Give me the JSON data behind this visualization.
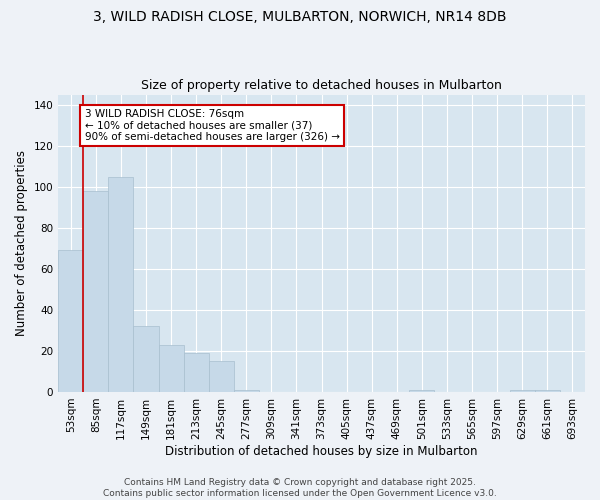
{
  "title_line1": "3, WILD RADISH CLOSE, MULBARTON, NORWICH, NR14 8DB",
  "title_line2": "Size of property relative to detached houses in Mulbarton",
  "xlabel": "Distribution of detached houses by size in Mulbarton",
  "ylabel": "Number of detached properties",
  "categories": [
    "53sqm",
    "85sqm",
    "117sqm",
    "149sqm",
    "181sqm",
    "213sqm",
    "245sqm",
    "277sqm",
    "309sqm",
    "341sqm",
    "373sqm",
    "405sqm",
    "437sqm",
    "469sqm",
    "501sqm",
    "533sqm",
    "565sqm",
    "597sqm",
    "629sqm",
    "661sqm",
    "693sqm"
  ],
  "values": [
    69,
    98,
    105,
    32,
    23,
    19,
    15,
    1,
    0,
    0,
    0,
    0,
    0,
    0,
    1,
    0,
    0,
    0,
    1,
    1,
    0
  ],
  "bar_color": "#c6d9e8",
  "bar_edge_color": "#a8bfcf",
  "ylim": [
    0,
    145
  ],
  "yticks": [
    0,
    20,
    40,
    60,
    80,
    100,
    120,
    140
  ],
  "red_line_x": 0.5,
  "annotation_title": "3 WILD RADISH CLOSE: 76sqm",
  "annotation_line1": "← 10% of detached houses are smaller (37)",
  "annotation_line2": "90% of semi-detached houses are larger (326) →",
  "annotation_box_color": "#ffffff",
  "annotation_box_edge": "#cc0000",
  "footer_line1": "Contains HM Land Registry data © Crown copyright and database right 2025.",
  "footer_line2": "Contains public sector information licensed under the Open Government Licence v3.0.",
  "background_color": "#eef2f7",
  "plot_bg_color": "#d8e6f0",
  "grid_color": "#ffffff",
  "title_fontsize": 10,
  "subtitle_fontsize": 9,
  "tick_fontsize": 7.5,
  "ylabel_fontsize": 8.5,
  "xlabel_fontsize": 8.5,
  "footer_fontsize": 6.5,
  "annot_fontsize": 7.5
}
